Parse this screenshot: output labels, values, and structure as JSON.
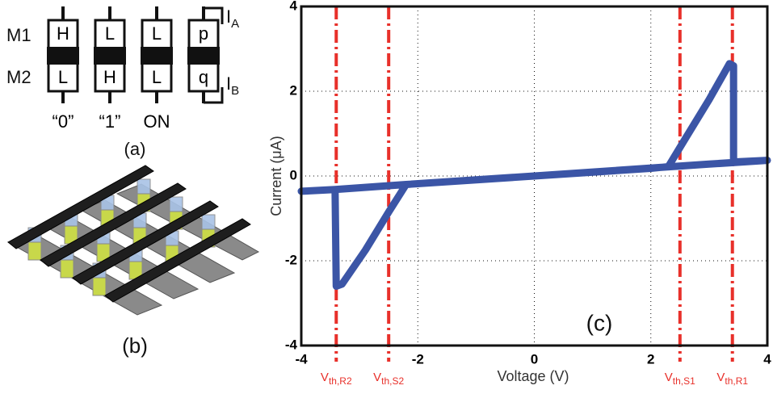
{
  "panel_a": {
    "rows": [
      "M1",
      "M2"
    ],
    "cells": [
      [
        "H",
        "L"
      ],
      [
        "L",
        "H"
      ],
      [
        "L",
        "L"
      ],
      [
        "p",
        "q"
      ]
    ],
    "states": [
      "“0”",
      "“1”",
      "ON"
    ],
    "currents": [
      {
        "name": "I",
        "subscript": "A"
      },
      {
        "name": "I",
        "subscript": "B"
      }
    ],
    "label": "(a)"
  },
  "panel_b": {
    "label": "(b)"
  },
  "chart_data": {
    "type": "line",
    "xlabel": "Voltage (V)",
    "ylabel": "Current (μA)",
    "annotation": "(c)",
    "xlim": [
      -4,
      4
    ],
    "ylim": [
      -4,
      4
    ],
    "xticks": [
      -4,
      -2,
      0,
      2,
      4
    ],
    "yticks": [
      -4,
      -2,
      0,
      2,
      4
    ],
    "grid": true,
    "x": [
      0,
      2,
      2.3,
      2.6,
      3.0,
      3.35,
      3.42,
      3.42,
      4,
      3,
      0,
      -2.2,
      -3.42,
      -4,
      -3.42,
      -3.4,
      -3.3,
      -2.9,
      -2.5,
      -2.2,
      0
    ],
    "series": [
      {
        "color": "#3b55a6",
        "values": [
          0,
          0.18,
          0.22,
          0.9,
          1.8,
          2.65,
          2.6,
          0.33,
          0.37,
          0.28,
          0,
          -0.2,
          -0.32,
          -0.36,
          -0.32,
          -2.6,
          -2.55,
          -1.75,
          -0.85,
          -0.2,
          0
        ]
      }
    ],
    "threshold_color": "#e8302a",
    "thresholds": [
      {
        "name": "V",
        "subscript": "th,R2",
        "x": -3.4
      },
      {
        "name": "V",
        "subscript": "th,S2",
        "x": -2.5
      },
      {
        "name": "V",
        "subscript": "th,S1",
        "x": 2.5
      },
      {
        "name": "V",
        "subscript": "th,R1",
        "x": 3.4
      }
    ]
  }
}
